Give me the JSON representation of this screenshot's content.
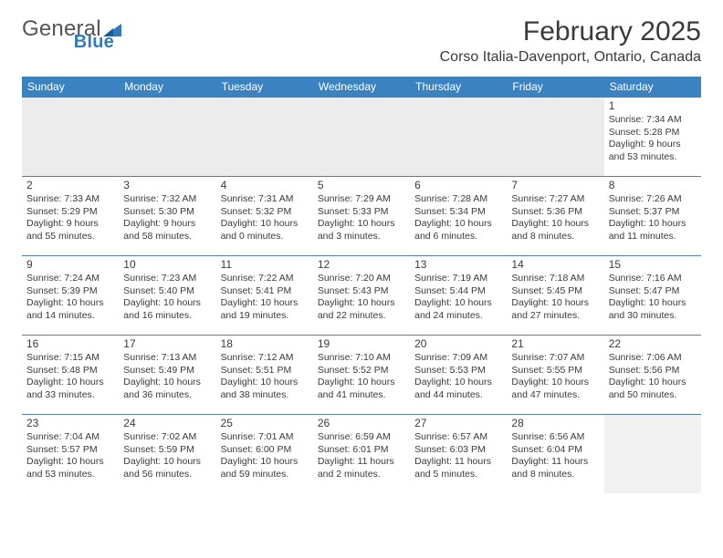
{
  "brand": {
    "name_part1": "General",
    "name_part2": "Blue",
    "color_primary": "#2f7bc2",
    "color_text": "#555555"
  },
  "header": {
    "month_title": "February 2025",
    "location": "Corso Italia-Davenport, Ontario, Canada"
  },
  "style": {
    "header_bg": "#3b83c0",
    "header_text": "#ffffff",
    "divider": "#5a7da4",
    "body_text": "#3a3a3a",
    "empty_bg": "#ececec",
    "font_family": "Arial"
  },
  "weekdays": [
    "Sunday",
    "Monday",
    "Tuesday",
    "Wednesday",
    "Thursday",
    "Friday",
    "Saturday"
  ],
  "weeks": [
    [
      null,
      null,
      null,
      null,
      null,
      null,
      {
        "n": "1",
        "sunrise": "Sunrise: 7:34 AM",
        "sunset": "Sunset: 5:28 PM",
        "day1": "Daylight: 9 hours",
        "day2": "and 53 minutes."
      }
    ],
    [
      {
        "n": "2",
        "sunrise": "Sunrise: 7:33 AM",
        "sunset": "Sunset: 5:29 PM",
        "day1": "Daylight: 9 hours",
        "day2": "and 55 minutes."
      },
      {
        "n": "3",
        "sunrise": "Sunrise: 7:32 AM",
        "sunset": "Sunset: 5:30 PM",
        "day1": "Daylight: 9 hours",
        "day2": "and 58 minutes."
      },
      {
        "n": "4",
        "sunrise": "Sunrise: 7:31 AM",
        "sunset": "Sunset: 5:32 PM",
        "day1": "Daylight: 10 hours",
        "day2": "and 0 minutes."
      },
      {
        "n": "5",
        "sunrise": "Sunrise: 7:29 AM",
        "sunset": "Sunset: 5:33 PM",
        "day1": "Daylight: 10 hours",
        "day2": "and 3 minutes."
      },
      {
        "n": "6",
        "sunrise": "Sunrise: 7:28 AM",
        "sunset": "Sunset: 5:34 PM",
        "day1": "Daylight: 10 hours",
        "day2": "and 6 minutes."
      },
      {
        "n": "7",
        "sunrise": "Sunrise: 7:27 AM",
        "sunset": "Sunset: 5:36 PM",
        "day1": "Daylight: 10 hours",
        "day2": "and 8 minutes."
      },
      {
        "n": "8",
        "sunrise": "Sunrise: 7:26 AM",
        "sunset": "Sunset: 5:37 PM",
        "day1": "Daylight: 10 hours",
        "day2": "and 11 minutes."
      }
    ],
    [
      {
        "n": "9",
        "sunrise": "Sunrise: 7:24 AM",
        "sunset": "Sunset: 5:39 PM",
        "day1": "Daylight: 10 hours",
        "day2": "and 14 minutes."
      },
      {
        "n": "10",
        "sunrise": "Sunrise: 7:23 AM",
        "sunset": "Sunset: 5:40 PM",
        "day1": "Daylight: 10 hours",
        "day2": "and 16 minutes."
      },
      {
        "n": "11",
        "sunrise": "Sunrise: 7:22 AM",
        "sunset": "Sunset: 5:41 PM",
        "day1": "Daylight: 10 hours",
        "day2": "and 19 minutes."
      },
      {
        "n": "12",
        "sunrise": "Sunrise: 7:20 AM",
        "sunset": "Sunset: 5:43 PM",
        "day1": "Daylight: 10 hours",
        "day2": "and 22 minutes."
      },
      {
        "n": "13",
        "sunrise": "Sunrise: 7:19 AM",
        "sunset": "Sunset: 5:44 PM",
        "day1": "Daylight: 10 hours",
        "day2": "and 24 minutes."
      },
      {
        "n": "14",
        "sunrise": "Sunrise: 7:18 AM",
        "sunset": "Sunset: 5:45 PM",
        "day1": "Daylight: 10 hours",
        "day2": "and 27 minutes."
      },
      {
        "n": "15",
        "sunrise": "Sunrise: 7:16 AM",
        "sunset": "Sunset: 5:47 PM",
        "day1": "Daylight: 10 hours",
        "day2": "and 30 minutes."
      }
    ],
    [
      {
        "n": "16",
        "sunrise": "Sunrise: 7:15 AM",
        "sunset": "Sunset: 5:48 PM",
        "day1": "Daylight: 10 hours",
        "day2": "and 33 minutes."
      },
      {
        "n": "17",
        "sunrise": "Sunrise: 7:13 AM",
        "sunset": "Sunset: 5:49 PM",
        "day1": "Daylight: 10 hours",
        "day2": "and 36 minutes."
      },
      {
        "n": "18",
        "sunrise": "Sunrise: 7:12 AM",
        "sunset": "Sunset: 5:51 PM",
        "day1": "Daylight: 10 hours",
        "day2": "and 38 minutes."
      },
      {
        "n": "19",
        "sunrise": "Sunrise: 7:10 AM",
        "sunset": "Sunset: 5:52 PM",
        "day1": "Daylight: 10 hours",
        "day2": "and 41 minutes."
      },
      {
        "n": "20",
        "sunrise": "Sunrise: 7:09 AM",
        "sunset": "Sunset: 5:53 PM",
        "day1": "Daylight: 10 hours",
        "day2": "and 44 minutes."
      },
      {
        "n": "21",
        "sunrise": "Sunrise: 7:07 AM",
        "sunset": "Sunset: 5:55 PM",
        "day1": "Daylight: 10 hours",
        "day2": "and 47 minutes."
      },
      {
        "n": "22",
        "sunrise": "Sunrise: 7:06 AM",
        "sunset": "Sunset: 5:56 PM",
        "day1": "Daylight: 10 hours",
        "day2": "and 50 minutes."
      }
    ],
    [
      {
        "n": "23",
        "sunrise": "Sunrise: 7:04 AM",
        "sunset": "Sunset: 5:57 PM",
        "day1": "Daylight: 10 hours",
        "day2": "and 53 minutes."
      },
      {
        "n": "24",
        "sunrise": "Sunrise: 7:02 AM",
        "sunset": "Sunset: 5:59 PM",
        "day1": "Daylight: 10 hours",
        "day2": "and 56 minutes."
      },
      {
        "n": "25",
        "sunrise": "Sunrise: 7:01 AM",
        "sunset": "Sunset: 6:00 PM",
        "day1": "Daylight: 10 hours",
        "day2": "and 59 minutes."
      },
      {
        "n": "26",
        "sunrise": "Sunrise: 6:59 AM",
        "sunset": "Sunset: 6:01 PM",
        "day1": "Daylight: 11 hours",
        "day2": "and 2 minutes."
      },
      {
        "n": "27",
        "sunrise": "Sunrise: 6:57 AM",
        "sunset": "Sunset: 6:03 PM",
        "day1": "Daylight: 11 hours",
        "day2": "and 5 minutes."
      },
      {
        "n": "28",
        "sunrise": "Sunrise: 6:56 AM",
        "sunset": "Sunset: 6:04 PM",
        "day1": "Daylight: 11 hours",
        "day2": "and 8 minutes."
      },
      null
    ]
  ]
}
